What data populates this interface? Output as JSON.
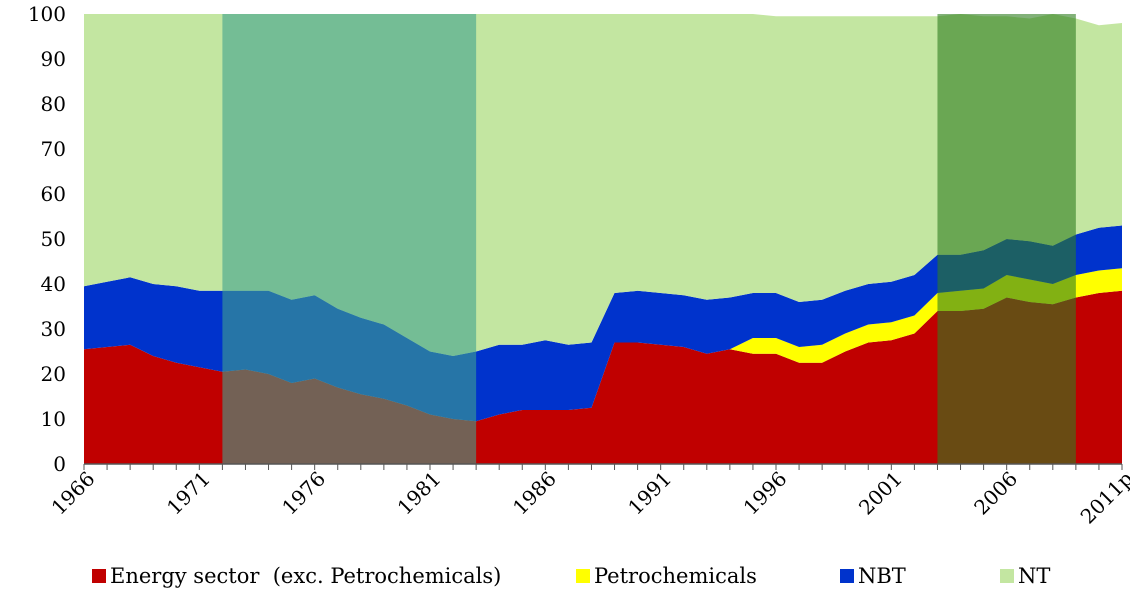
{
  "chart_data": {
    "type": "area",
    "stacked": true,
    "x": [
      "1966",
      "1967",
      "1968",
      "1969",
      "1970",
      "1971",
      "1972",
      "1973",
      "1974",
      "1975",
      "1976",
      "1977",
      "1978",
      "1979",
      "1980",
      "1981",
      "1982",
      "1983",
      "1984",
      "1985",
      "1986",
      "1987",
      "1988",
      "1989",
      "1990",
      "1991",
      "1992",
      "1993",
      "1994",
      "1995",
      "1996",
      "1997",
      "1998",
      "1999",
      "2000",
      "2001",
      "2002",
      "2003",
      "2004",
      "2005",
      "2006",
      "2007",
      "2008",
      "2009",
      "2010",
      "2011p"
    ],
    "x_tick_labels": [
      "1966",
      "1971",
      "1976",
      "1981",
      "1986",
      "1991",
      "1996",
      "2001",
      "2006",
      "2011p"
    ],
    "y_ticks": [
      0,
      10,
      20,
      30,
      40,
      50,
      60,
      70,
      80,
      90,
      100
    ],
    "ylim": [
      0,
      100
    ],
    "series": [
      {
        "name": "Energy sector  (exc. Petrochemicals)",
        "color": "#C00000",
        "values": [
          25.5,
          26,
          26.5,
          24,
          22.5,
          21.5,
          20.5,
          21,
          20,
          18,
          19,
          17,
          15.5,
          14.5,
          13,
          11,
          10,
          9.5,
          11,
          12,
          12,
          12,
          12.5,
          27,
          27,
          26.5,
          26,
          24.5,
          25.5,
          24.5,
          24.5,
          22.5,
          22.5,
          25,
          27,
          27.5,
          29,
          34,
          34,
          34.5,
          37,
          36,
          35.5,
          37,
          38,
          38.5
        ]
      },
      {
        "name": "Petrochemicals",
        "color": "#FFFF00",
        "values": [
          0,
          0,
          0,
          0,
          0,
          0,
          0,
          0,
          0,
          0,
          0,
          0,
          0,
          0,
          0,
          0,
          0,
          0,
          0,
          0,
          0,
          0,
          0,
          0,
          0,
          0,
          0,
          0,
          0,
          3.5,
          3.5,
          3.5,
          4,
          4,
          4,
          4,
          4,
          4,
          4.5,
          4.5,
          5,
          5,
          4.5,
          5,
          5,
          5
        ]
      },
      {
        "name": "NBT",
        "color": "#0033CC",
        "values": [
          14,
          14.5,
          15,
          16,
          17,
          17,
          18,
          17.5,
          18.5,
          18.5,
          18.5,
          17.5,
          17,
          16.5,
          15,
          14,
          14,
          15.5,
          15.5,
          14.5,
          15.5,
          14.5,
          14.5,
          11,
          11.5,
          11.5,
          11.5,
          12,
          11.5,
          10,
          10,
          10,
          10,
          9.5,
          9,
          9,
          9,
          8.5,
          8,
          8.5,
          8,
          8.5,
          8.5,
          9,
          9.5,
          9.5
        ]
      },
      {
        "name": "NT",
        "color": "#C3E6A1",
        "values": [
          60.5,
          59.5,
          58.5,
          60,
          60.5,
          61.5,
          61.5,
          61.5,
          61.5,
          63.5,
          62.5,
          65.5,
          67.5,
          69,
          72,
          75,
          76,
          75,
          73.5,
          73.5,
          72.5,
          73.5,
          73,
          62,
          61.5,
          62,
          62.5,
          63.5,
          63,
          62,
          61.5,
          63.5,
          63,
          61,
          59.5,
          59,
          57.5,
          53,
          53.5,
          52,
          49.5,
          49.5,
          51.5,
          48,
          45,
          45
        ]
      }
    ],
    "shaded_ranges": [
      {
        "from": "1972",
        "to": "1983",
        "color": "#3FA28E"
      },
      {
        "from": "2003",
        "to": "2009",
        "color": "#2E7D1F"
      }
    ],
    "legend_position": "bottom"
  }
}
